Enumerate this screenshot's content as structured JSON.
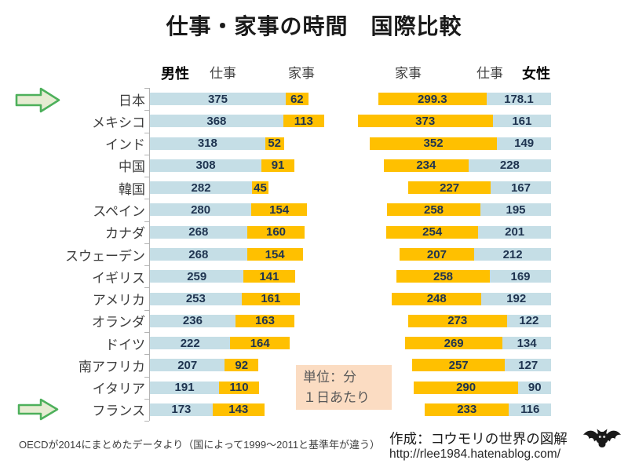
{
  "title": "仕事・家事の時間　国際比較",
  "headers": {
    "male": "男性",
    "male_work": "仕事",
    "male_housework": "家事",
    "female_housework": "家事",
    "female_work": "仕事",
    "female": "女性"
  },
  "unit_box": {
    "line1": "単位：分",
    "line2": "１日あたり"
  },
  "footnote": "OECDが2014にまとめたデータより（国によって1999～2011と基準年が違う）",
  "credit": {
    "author": "作成：コウモリの世界の図解",
    "url": "http://rlee1984.hatenablog.com/",
    "icon": "bat-icon"
  },
  "colors": {
    "work_bar": "#c5dee6",
    "housework_bar": "#ffc000",
    "number_text": "#1f3450",
    "axis": "#b3b3b3",
    "unit_box_bg": "#fbdcc2",
    "arrow_fill": "#e6ecd2",
    "arrow_stroke": "#4db05b",
    "bat": "#1a1a1a"
  },
  "chart_data": {
    "type": "bar",
    "subtype": "horizontal paired stacked bars; male side grows rightward from left axis (work then housework), female side grows leftward from right anchor (work innermost, housework outer)",
    "unit": "minutes per day",
    "categories": [
      "日本",
      "メキシコ",
      "インド",
      "中国",
      "韓国",
      "スペイン",
      "カナダ",
      "スウェーデン",
      "イギリス",
      "アメリカ",
      "オランダ",
      "ドイツ",
      "南アフリカ",
      "イタリア",
      "フランス"
    ],
    "series": [
      {
        "name": "男性 仕事",
        "values": [
          375,
          368,
          318,
          308,
          282,
          280,
          268,
          268,
          259,
          253,
          236,
          222,
          207,
          191,
          173
        ]
      },
      {
        "name": "男性 家事",
        "values": [
          62,
          113,
          52,
          91,
          45,
          154,
          160,
          154,
          141,
          161,
          163,
          164,
          92,
          110,
          143
        ]
      },
      {
        "name": "女性 家事",
        "values": [
          299.3,
          373,
          352,
          234,
          227,
          258,
          254,
          207,
          258,
          248,
          273,
          269,
          257,
          290,
          233
        ]
      },
      {
        "name": "女性 仕事",
        "values": [
          178.1,
          161,
          149,
          228,
          167,
          195,
          201,
          212,
          169,
          192,
          122,
          134,
          127,
          90,
          116
        ]
      }
    ],
    "highlighted_categories": [
      "日本",
      "フランス"
    ],
    "legend_position": "top headers",
    "grid": false
  }
}
